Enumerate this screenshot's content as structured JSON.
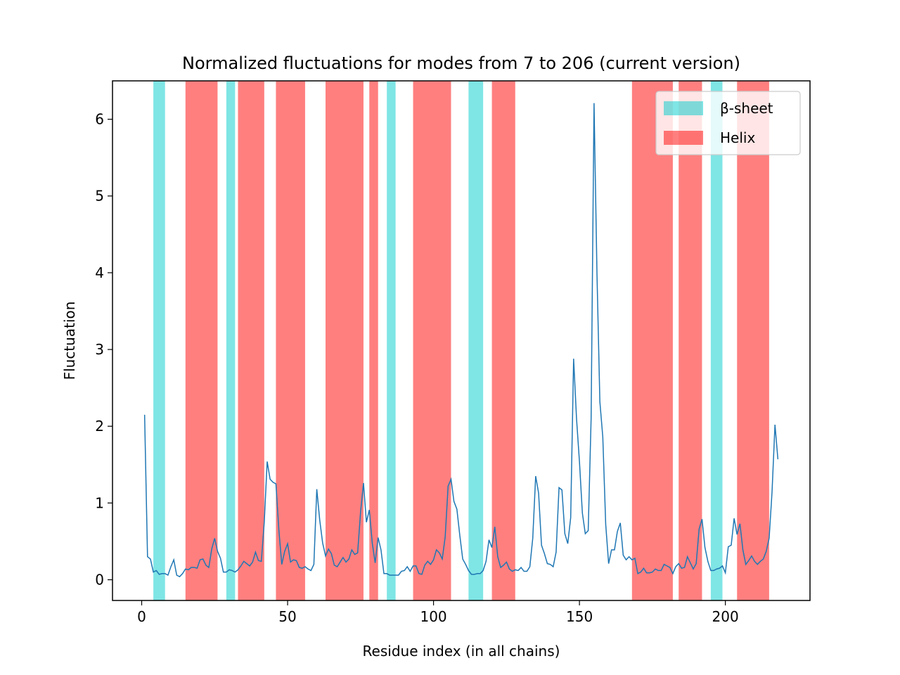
{
  "chart_data": {
    "type": "line",
    "title": "Normalized fluctuations for modes from 7 to 206 (current version)",
    "xlabel": "Residue index (in all chains)",
    "ylabel": "Fluctuation",
    "xlim": [
      -10,
      229
    ],
    "ylim": [
      -0.27,
      6.5
    ],
    "xticks": [
      0,
      50,
      100,
      150,
      200
    ],
    "yticks": [
      0,
      1,
      2,
      3,
      4,
      5,
      6
    ],
    "grid": false,
    "legend_position": "upper right",
    "series": [
      {
        "color": "#1f77b4",
        "x": [
          1,
          2,
          3,
          4,
          5,
          6,
          7,
          8,
          9,
          10,
          11,
          12,
          13,
          14,
          15,
          16,
          17,
          18,
          19,
          20,
          21,
          22,
          23,
          24,
          25,
          26,
          27,
          28,
          29,
          30,
          31,
          32,
          33,
          34,
          35,
          36,
          37,
          38,
          39,
          40,
          41,
          42,
          43,
          44,
          45,
          46,
          47,
          48,
          49,
          50,
          51,
          52,
          53,
          54,
          55,
          56,
          57,
          58,
          59,
          60,
          61,
          62,
          63,
          64,
          65,
          66,
          67,
          68,
          69,
          70,
          71,
          72,
          73,
          74,
          75,
          76,
          77,
          78,
          79,
          80,
          81,
          82,
          83,
          84,
          85,
          86,
          87,
          88,
          89,
          90,
          91,
          92,
          93,
          94,
          95,
          96,
          97,
          98,
          99,
          100,
          101,
          102,
          103,
          104,
          105,
          106,
          107,
          108,
          109,
          110,
          111,
          112,
          113,
          114,
          115,
          116,
          117,
          118,
          119,
          120,
          121,
          122,
          123,
          124,
          125,
          126,
          127,
          128,
          129,
          130,
          131,
          132,
          133,
          134,
          135,
          136,
          137,
          138,
          139,
          140,
          141,
          142,
          143,
          144,
          145,
          146,
          147,
          148,
          149,
          150,
          151,
          152,
          153,
          154,
          155,
          156,
          157,
          158,
          159,
          160,
          161,
          162,
          163,
          164,
          165,
          166,
          167,
          168,
          169,
          170,
          171,
          172,
          173,
          174,
          175,
          176,
          177,
          178,
          179,
          180,
          181,
          182,
          183,
          184,
          185,
          186,
          187,
          188,
          189,
          190,
          191,
          192,
          193,
          194,
          195,
          196,
          197,
          198,
          199,
          200,
          201,
          202,
          203,
          204,
          205,
          206,
          207,
          208,
          209,
          210,
          211,
          212,
          213,
          214,
          215,
          216,
          217,
          218
        ],
        "y": [
          2.15,
          0.3,
          0.27,
          0.1,
          0.12,
          0.07,
          0.08,
          0.08,
          0.06,
          0.17,
          0.26,
          0.06,
          0.04,
          0.08,
          0.14,
          0.13,
          0.16,
          0.16,
          0.15,
          0.26,
          0.27,
          0.19,
          0.16,
          0.4,
          0.54,
          0.37,
          0.28,
          0.1,
          0.1,
          0.13,
          0.12,
          0.1,
          0.13,
          0.18,
          0.24,
          0.21,
          0.18,
          0.23,
          0.36,
          0.25,
          0.24,
          0.75,
          1.54,
          1.31,
          1.27,
          1.25,
          0.65,
          0.2,
          0.37,
          0.47,
          0.23,
          0.26,
          0.25,
          0.16,
          0.15,
          0.17,
          0.14,
          0.12,
          0.2,
          1.18,
          0.78,
          0.48,
          0.31,
          0.4,
          0.34,
          0.19,
          0.17,
          0.23,
          0.29,
          0.23,
          0.27,
          0.39,
          0.33,
          0.35,
          0.88,
          1.26,
          0.75,
          0.91,
          0.48,
          0.22,
          0.55,
          0.39,
          0.08,
          0.08,
          0.06,
          0.06,
          0.06,
          0.06,
          0.11,
          0.12,
          0.17,
          0.11,
          0.18,
          0.18,
          0.08,
          0.07,
          0.19,
          0.24,
          0.2,
          0.26,
          0.39,
          0.35,
          0.27,
          0.56,
          1.22,
          1.31,
          1.02,
          0.92,
          0.58,
          0.27,
          0.2,
          0.12,
          0.07,
          0.07,
          0.08,
          0.08,
          0.12,
          0.24,
          0.52,
          0.42,
          0.69,
          0.3,
          0.16,
          0.19,
          0.23,
          0.14,
          0.11,
          0.13,
          0.12,
          0.16,
          0.11,
          0.11,
          0.17,
          0.54,
          1.35,
          1.13,
          0.45,
          0.34,
          0.21,
          0.2,
          0.17,
          0.36,
          1.2,
          1.17,
          0.6,
          0.47,
          0.81,
          2.88,
          2.1,
          1.54,
          0.87,
          0.6,
          0.64,
          2.1,
          6.21,
          4.0,
          2.32,
          1.86,
          0.72,
          0.21,
          0.39,
          0.39,
          0.63,
          0.74,
          0.32,
          0.26,
          0.3,
          0.26,
          0.28,
          0.08,
          0.1,
          0.15,
          0.09,
          0.09,
          0.1,
          0.14,
          0.12,
          0.12,
          0.2,
          0.18,
          0.16,
          0.08,
          0.17,
          0.21,
          0.15,
          0.16,
          0.3,
          0.22,
          0.14,
          0.21,
          0.66,
          0.79,
          0.42,
          0.24,
          0.12,
          0.12,
          0.14,
          0.15,
          0.18,
          0.09,
          0.43,
          0.45,
          0.8,
          0.59,
          0.73,
          0.39,
          0.2,
          0.25,
          0.31,
          0.24,
          0.2,
          0.24,
          0.27,
          0.37,
          0.54,
          1.15,
          2.02,
          1.57
        ]
      }
    ],
    "bands": [
      {
        "legend": "β-sheet",
        "color": "#00cccc",
        "alpha": 0.5,
        "ranges": [
          [
            4,
            8
          ],
          [
            29,
            32
          ],
          [
            84,
            87
          ],
          [
            112,
            117
          ],
          [
            195,
            199
          ]
        ]
      },
      {
        "legend": "Helix",
        "color": "#ff0000",
        "alpha": 0.5,
        "ranges": [
          [
            15,
            26
          ],
          [
            33,
            42
          ],
          [
            46,
            56
          ],
          [
            63,
            76
          ],
          [
            78,
            81
          ],
          [
            93,
            106
          ],
          [
            120,
            128
          ],
          [
            168,
            182
          ],
          [
            184,
            192
          ],
          [
            204,
            215
          ]
        ]
      }
    ]
  }
}
